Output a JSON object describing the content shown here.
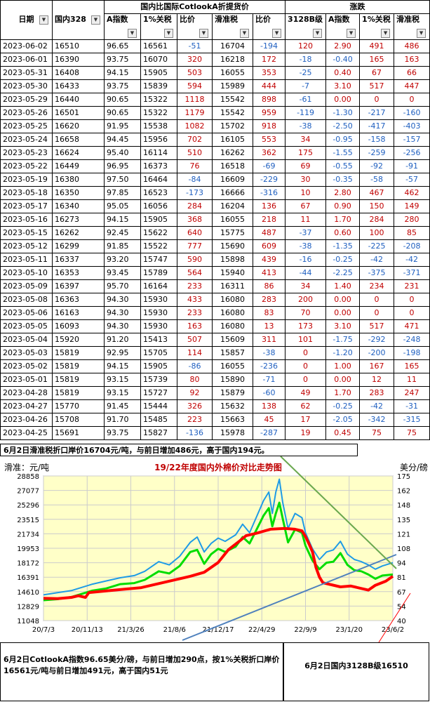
{
  "table": {
    "header_group": {
      "date": "日期",
      "domestic": "国内328",
      "cotlook": "国内比国际CotlookA折提货价",
      "change": "涨跌"
    },
    "columns": [
      "日期",
      "国内328",
      "A指数",
      "1%关税",
      "比价",
      "滑准税",
      "比价",
      "3128B级",
      "A指数",
      "1%关税",
      "滑准税"
    ],
    "rows": [
      [
        "2023-06-02",
        "16510",
        "96.65",
        "16561",
        "-51",
        "16704",
        "-194",
        "120",
        "2.90",
        "491",
        "486"
      ],
      [
        "2023-06-01",
        "16390",
        "93.75",
        "16070",
        "320",
        "16218",
        "172",
        "-18",
        "-0.40",
        "165",
        "163"
      ],
      [
        "2023-05-31",
        "16408",
        "94.15",
        "15905",
        "503",
        "16055",
        "353",
        "-25",
        "0.40",
        "67",
        "66"
      ],
      [
        "2023-05-30",
        "16433",
        "93.75",
        "15839",
        "594",
        "15989",
        "444",
        "-7",
        "3.10",
        "517",
        "447"
      ],
      [
        "2023-05-29",
        "16440",
        "90.65",
        "15322",
        "1118",
        "15542",
        "898",
        "-61",
        "0.00",
        "0",
        "0"
      ],
      [
        "2023-05-26",
        "16501",
        "90.65",
        "15322",
        "1179",
        "15542",
        "959",
        "-119",
        "-1.30",
        "-217",
        "-160"
      ],
      [
        "2023-05-25",
        "16620",
        "91.95",
        "15538",
        "1082",
        "15702",
        "918",
        "-38",
        "-2.50",
        "-417",
        "-403"
      ],
      [
        "2023-05-24",
        "16658",
        "94.45",
        "15956",
        "702",
        "16105",
        "553",
        "34",
        "-0.95",
        "-158",
        "-157"
      ],
      [
        "2023-05-23",
        "16624",
        "95.40",
        "16114",
        "510",
        "16262",
        "362",
        "175",
        "-1.55",
        "-259",
        "-256"
      ],
      [
        "2023-05-22",
        "16449",
        "96.95",
        "16373",
        "76",
        "16518",
        "-69",
        "69",
        "-0.55",
        "-92",
        "-91"
      ],
      [
        "2023-05-19",
        "16380",
        "97.50",
        "16464",
        "-84",
        "16609",
        "-229",
        "30",
        "-0.35",
        "-58",
        "-57"
      ],
      [
        "2023-05-18",
        "16350",
        "97.85",
        "16523",
        "-173",
        "16666",
        "-316",
        "10",
        "2.80",
        "467",
        "462"
      ],
      [
        "2023-05-17",
        "16340",
        "95.05",
        "16056",
        "284",
        "16204",
        "136",
        "67",
        "0.90",
        "150",
        "149"
      ],
      [
        "2023-05-16",
        "16273",
        "94.15",
        "15905",
        "368",
        "16055",
        "218",
        "11",
        "1.70",
        "284",
        "280"
      ],
      [
        "2023-05-15",
        "16262",
        "92.45",
        "15622",
        "640",
        "15775",
        "487",
        "-37",
        "0.60",
        "100",
        "85"
      ],
      [
        "2023-05-12",
        "16299",
        "91.85",
        "15522",
        "777",
        "15690",
        "609",
        "-38",
        "-1.35",
        "-225",
        "-208"
      ],
      [
        "2023-05-11",
        "16337",
        "93.20",
        "15747",
        "590",
        "15898",
        "439",
        "-16",
        "-0.25",
        "-42",
        "-42"
      ],
      [
        "2023-05-10",
        "16353",
        "93.45",
        "15789",
        "564",
        "15940",
        "413",
        "-44",
        "-2.25",
        "-375",
        "-371"
      ],
      [
        "2023-05-09",
        "16397",
        "95.70",
        "16164",
        "233",
        "16311",
        "86",
        "34",
        "1.40",
        "234",
        "231"
      ],
      [
        "2023-05-08",
        "16363",
        "94.30",
        "15930",
        "433",
        "16080",
        "283",
        "200",
        "0.00",
        "0",
        "0"
      ],
      [
        "2023-05-06",
        "16163",
        "94.30",
        "15930",
        "233",
        "16080",
        "83",
        "70",
        "0.00",
        "0",
        "0"
      ],
      [
        "2023-05-05",
        "16093",
        "94.30",
        "15930",
        "163",
        "16080",
        "13",
        "173",
        "3.10",
        "517",
        "471"
      ],
      [
        "2023-05-04",
        "15920",
        "91.20",
        "15413",
        "507",
        "15609",
        "311",
        "101",
        "-1.75",
        "-292",
        "-248"
      ],
      [
        "2023-05-03",
        "15819",
        "92.95",
        "15705",
        "114",
        "15857",
        "-38",
        "0",
        "-1.20",
        "-200",
        "-198"
      ],
      [
        "2023-05-02",
        "15819",
        "94.15",
        "15905",
        "-86",
        "16055",
        "-236",
        "0",
        "1.00",
        "167",
        "165"
      ],
      [
        "2023-05-01",
        "15819",
        "93.15",
        "15739",
        "80",
        "15890",
        "-71",
        "0",
        "0.00",
        "12",
        "11"
      ],
      [
        "2023-04-28",
        "15819",
        "93.15",
        "15727",
        "92",
        "15879",
        "-60",
        "49",
        "1.70",
        "283",
        "247"
      ],
      [
        "2023-04-27",
        "15770",
        "91.45",
        "15444",
        "326",
        "15632",
        "138",
        "62",
        "-0.25",
        "-42",
        "-31"
      ],
      [
        "2023-04-26",
        "15708",
        "91.70",
        "15485",
        "223",
        "15663",
        "45",
        "17",
        "-2.05",
        "-342",
        "-315"
      ],
      [
        "2023-04-25",
        "15691",
        "93.75",
        "15827",
        "-136",
        "15978",
        "-287",
        "19",
        "0.45",
        "75",
        "75"
      ]
    ]
  },
  "note_top": "6月2日滑准税折口岸价16704元/吨，与前日增加486元，高于国内194元。",
  "note_bottom_left": "6月2日CotlookA指数96.65美分/磅，与前日增加290点，按1%关税折口岸价16561元/吨与前日增加491元，高于国内51元",
  "note_bottom_right": "6月2日国内3128B级16510",
  "colors": {
    "red": "#c00000",
    "blue": "#2060c0",
    "chart_bg": "#ffffc8",
    "red_line": "#ff0000",
    "green_line": "#00dd00",
    "blue_line": "#1e9be6",
    "trend_green": "#6aa84f",
    "trend_blue": "#4f81bd"
  },
  "chart_data": {
    "type": "line",
    "title": "19/22年度国内外棉价对比走势图",
    "ylabel_left": "滑准：元/吨",
    "ylabel_right": "美分/磅",
    "left_ticks": [
      11048,
      12829,
      14610,
      16391,
      18172,
      19953,
      21734,
      23515,
      25296,
      27077,
      28858
    ],
    "right_ticks": [
      40,
      54,
      67,
      81,
      94,
      108,
      121,
      135,
      148,
      162,
      175
    ],
    "x_ticks": [
      "20/7/3",
      "20/11/13",
      "21/3/26",
      "21/8/6",
      "21/12/17",
      "22/4/29",
      "22/9/9",
      "23/1/20",
      "23/6/2"
    ],
    "ylim_left": [
      11048,
      28858
    ],
    "ylim_right": [
      40,
      175
    ],
    "grid": true,
    "series": [
      {
        "axis": "left",
        "color": "red",
        "points": [
          [
            0,
            13800
          ],
          [
            0.04,
            13750
          ],
          [
            0.08,
            13900
          ],
          [
            0.1,
            14100
          ],
          [
            0.12,
            13900
          ],
          [
            0.13,
            14500
          ],
          [
            0.18,
            14700
          ],
          [
            0.23,
            14900
          ],
          [
            0.28,
            15100
          ],
          [
            0.33,
            15600
          ],
          [
            0.38,
            16100
          ],
          [
            0.42,
            16500
          ],
          [
            0.46,
            17000
          ],
          [
            0.5,
            18200
          ],
          [
            0.53,
            19800
          ],
          [
            0.56,
            20800
          ],
          [
            0.58,
            21500
          ],
          [
            0.61,
            21800
          ],
          [
            0.65,
            22300
          ],
          [
            0.69,
            22400
          ],
          [
            0.72,
            22300
          ],
          [
            0.74,
            22100
          ],
          [
            0.75,
            21400
          ],
          [
            0.76,
            20500
          ],
          [
            0.77,
            19500
          ],
          [
            0.78,
            17600
          ],
          [
            0.79,
            16400
          ],
          [
            0.8,
            15700
          ],
          [
            0.82,
            15500
          ],
          [
            0.85,
            15200
          ],
          [
            0.88,
            15300
          ],
          [
            0.91,
            15000
          ],
          [
            0.93,
            14800
          ],
          [
            0.95,
            15400
          ],
          [
            0.98,
            15900
          ],
          [
            1,
            16500
          ]
        ]
      },
      {
        "axis": "right",
        "color": "green",
        "points": [
          [
            0,
            59
          ],
          [
            0.04,
            60
          ],
          [
            0.08,
            62
          ],
          [
            0.11,
            65
          ],
          [
            0.14,
            68
          ],
          [
            0.18,
            70
          ],
          [
            0.22,
            74
          ],
          [
            0.26,
            75
          ],
          [
            0.29,
            78
          ],
          [
            0.33,
            86
          ],
          [
            0.36,
            84
          ],
          [
            0.39,
            91
          ],
          [
            0.42,
            104
          ],
          [
            0.44,
            106
          ],
          [
            0.46,
            93
          ],
          [
            0.48,
            102
          ],
          [
            0.5,
            107
          ],
          [
            0.52,
            104
          ],
          [
            0.55,
            109
          ],
          [
            0.57,
            118
          ],
          [
            0.59,
            112
          ],
          [
            0.61,
            125
          ],
          [
            0.63,
            138
          ],
          [
            0.645,
            145
          ],
          [
            0.655,
            128
          ],
          [
            0.665,
            140
          ],
          [
            0.675,
            150
          ],
          [
            0.685,
            135
          ],
          [
            0.7,
            113
          ],
          [
            0.72,
            125
          ],
          [
            0.74,
            122
          ],
          [
            0.75,
            110
          ],
          [
            0.77,
            96
          ],
          [
            0.79,
            88
          ],
          [
            0.81,
            94
          ],
          [
            0.83,
            95
          ],
          [
            0.85,
            103
          ],
          [
            0.87,
            92
          ],
          [
            0.89,
            87
          ],
          [
            0.91,
            86
          ],
          [
            0.93,
            83
          ],
          [
            0.95,
            79
          ],
          [
            0.97,
            82
          ],
          [
            1,
            83
          ]
        ]
      },
      {
        "axis": "right",
        "color": "blue",
        "points": [
          [
            0,
            64
          ],
          [
            0.04,
            66
          ],
          [
            0.08,
            68
          ],
          [
            0.11,
            71
          ],
          [
            0.14,
            74
          ],
          [
            0.18,
            77
          ],
          [
            0.22,
            80
          ],
          [
            0.26,
            82
          ],
          [
            0.29,
            86
          ],
          [
            0.33,
            95
          ],
          [
            0.36,
            92
          ],
          [
            0.39,
            100
          ],
          [
            0.42,
            113
          ],
          [
            0.44,
            118
          ],
          [
            0.46,
            104
          ],
          [
            0.48,
            112
          ],
          [
            0.5,
            117
          ],
          [
            0.52,
            114
          ],
          [
            0.55,
            120
          ],
          [
            0.57,
            130
          ],
          [
            0.59,
            122
          ],
          [
            0.61,
            137
          ],
          [
            0.63,
            152
          ],
          [
            0.645,
            160
          ],
          [
            0.655,
            140
          ],
          [
            0.665,
            160
          ],
          [
            0.675,
            172
          ],
          [
            0.685,
            150
          ],
          [
            0.7,
            126
          ],
          [
            0.72,
            140
          ],
          [
            0.74,
            136
          ],
          [
            0.75,
            122
          ],
          [
            0.77,
            107
          ],
          [
            0.79,
            97
          ],
          [
            0.81,
            104
          ],
          [
            0.83,
            106
          ],
          [
            0.85,
            114
          ],
          [
            0.87,
            102
          ],
          [
            0.89,
            97
          ],
          [
            0.91,
            95
          ],
          [
            0.93,
            92
          ],
          [
            0.95,
            88
          ],
          [
            0.97,
            91
          ],
          [
            1,
            94
          ]
        ]
      }
    ]
  }
}
